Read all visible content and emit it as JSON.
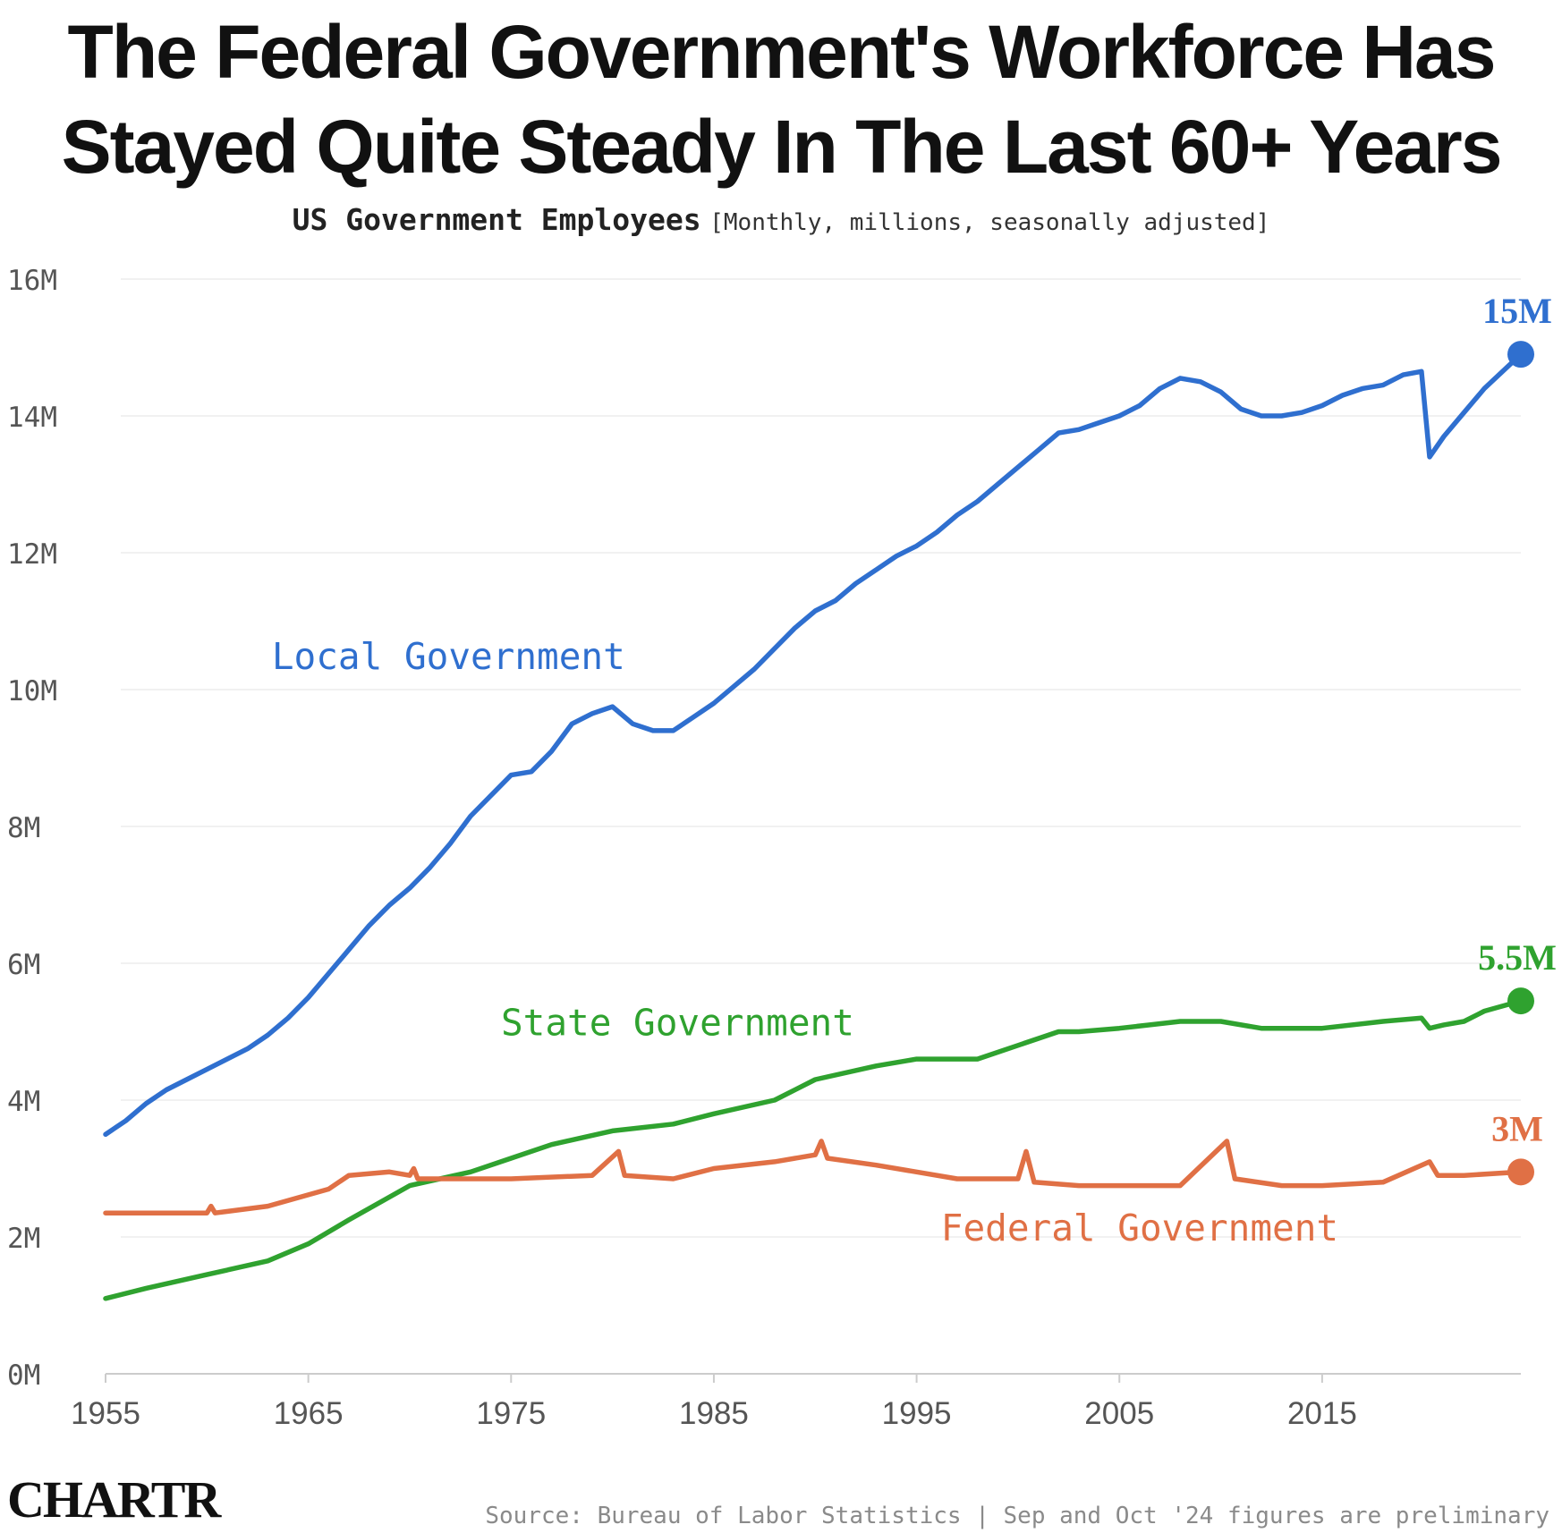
{
  "header": {
    "title_line1": "The Federal Government's Workforce Has",
    "title_line2": "Stayed Quite Steady In The Last 60+ Years",
    "subtitle_main": "US Government Employees",
    "subtitle_note": "[Monthly, millions, seasonally adjusted]"
  },
  "footer": {
    "logo": "CHARTR",
    "source": "Source: Bureau of Labor Statistics | Sep and Oct '24 figures are preliminary"
  },
  "colors": {
    "local": "#2f6fcf",
    "state": "#2fa22f",
    "federal": "#e07045",
    "grid": "#f1f1f1",
    "axis": "#cccccc",
    "tick_text": "#555555"
  },
  "chart_data": {
    "type": "line",
    "title": "The Federal Government's Workforce Has Stayed Quite Steady In The Last 60+ Years",
    "subtitle": "US Government Employees [Monthly, millions, seasonally adjusted]",
    "xlabel": "",
    "ylabel": "",
    "xlim": [
      1955,
      2024.8
    ],
    "ylim": [
      0,
      16
    ],
    "x_ticks": [
      1955,
      1965,
      1975,
      1985,
      1995,
      2005,
      2015
    ],
    "y_ticks": [
      {
        "value": 0,
        "label": "0M"
      },
      {
        "value": 2,
        "label": "2M"
      },
      {
        "value": 4,
        "label": "4M"
      },
      {
        "value": 6,
        "label": "6M"
      },
      {
        "value": 8,
        "label": "8M"
      },
      {
        "value": 10,
        "label": "10M"
      },
      {
        "value": 12,
        "label": "12M"
      },
      {
        "value": 14,
        "label": "14M"
      },
      {
        "value": 16,
        "label": "16M"
      }
    ],
    "grid": true,
    "legend": "none",
    "series": [
      {
        "key": "local",
        "name": "Local Government",
        "end_label": "15M",
        "points": [
          [
            1955,
            3.5
          ],
          [
            1956,
            3.7
          ],
          [
            1957,
            3.95
          ],
          [
            1958,
            4.15
          ],
          [
            1959,
            4.3
          ],
          [
            1960,
            4.45
          ],
          [
            1961,
            4.6
          ],
          [
            1962,
            4.75
          ],
          [
            1963,
            4.95
          ],
          [
            1964,
            5.2
          ],
          [
            1965,
            5.5
          ],
          [
            1966,
            5.85
          ],
          [
            1967,
            6.2
          ],
          [
            1968,
            6.55
          ],
          [
            1969,
            6.85
          ],
          [
            1970,
            7.1
          ],
          [
            1971,
            7.4
          ],
          [
            1972,
            7.75
          ],
          [
            1973,
            8.15
          ],
          [
            1974,
            8.45
          ],
          [
            1975,
            8.75
          ],
          [
            1976,
            8.8
          ],
          [
            1977,
            9.1
          ],
          [
            1978,
            9.5
          ],
          [
            1979,
            9.65
          ],
          [
            1980,
            9.75
          ],
          [
            1981,
            9.5
          ],
          [
            1982,
            9.4
          ],
          [
            1983,
            9.4
          ],
          [
            1984,
            9.6
          ],
          [
            1985,
            9.8
          ],
          [
            1986,
            10.05
          ],
          [
            1987,
            10.3
          ],
          [
            1988,
            10.6
          ],
          [
            1989,
            10.9
          ],
          [
            1990,
            11.15
          ],
          [
            1991,
            11.3
          ],
          [
            1992,
            11.55
          ],
          [
            1993,
            11.75
          ],
          [
            1994,
            11.95
          ],
          [
            1995,
            12.1
          ],
          [
            1996,
            12.3
          ],
          [
            1997,
            12.55
          ],
          [
            1998,
            12.75
          ],
          [
            1999,
            13.0
          ],
          [
            2000,
            13.25
          ],
          [
            2001,
            13.5
          ],
          [
            2002,
            13.75
          ],
          [
            2003,
            13.8
          ],
          [
            2004,
            13.9
          ],
          [
            2005,
            14.0
          ],
          [
            2006,
            14.15
          ],
          [
            2007,
            14.4
          ],
          [
            2008,
            14.55
          ],
          [
            2009,
            14.5
          ],
          [
            2010,
            14.35
          ],
          [
            2011,
            14.1
          ],
          [
            2012,
            14.0
          ],
          [
            2013,
            14.0
          ],
          [
            2014,
            14.05
          ],
          [
            2015,
            14.15
          ],
          [
            2016,
            14.3
          ],
          [
            2017,
            14.4
          ],
          [
            2018,
            14.45
          ],
          [
            2019,
            14.6
          ],
          [
            2019.9,
            14.65
          ],
          [
            2020.3,
            13.4
          ],
          [
            2021,
            13.7
          ],
          [
            2022,
            14.05
          ],
          [
            2023,
            14.4
          ],
          [
            2024.8,
            14.9
          ]
        ]
      },
      {
        "key": "state",
        "name": "State Government",
        "end_label": "5.5M",
        "points": [
          [
            1955,
            1.1
          ],
          [
            1957,
            1.25
          ],
          [
            1960,
            1.45
          ],
          [
            1963,
            1.65
          ],
          [
            1965,
            1.9
          ],
          [
            1967,
            2.25
          ],
          [
            1970,
            2.75
          ],
          [
            1973,
            2.95
          ],
          [
            1975,
            3.15
          ],
          [
            1977,
            3.35
          ],
          [
            1980,
            3.55
          ],
          [
            1983,
            3.65
          ],
          [
            1985,
            3.8
          ],
          [
            1988,
            4.0
          ],
          [
            1990,
            4.3
          ],
          [
            1993,
            4.5
          ],
          [
            1995,
            4.6
          ],
          [
            1998,
            4.6
          ],
          [
            2000,
            4.8
          ],
          [
            2002,
            5.0
          ],
          [
            2003,
            5.0
          ],
          [
            2005,
            5.05
          ],
          [
            2008,
            5.15
          ],
          [
            2010,
            5.15
          ],
          [
            2012,
            5.05
          ],
          [
            2015,
            5.05
          ],
          [
            2018,
            5.15
          ],
          [
            2019.9,
            5.2
          ],
          [
            2020.3,
            5.05
          ],
          [
            2021,
            5.1
          ],
          [
            2022,
            5.15
          ],
          [
            2023,
            5.3
          ],
          [
            2024.8,
            5.45
          ]
        ]
      },
      {
        "key": "federal",
        "name": "Federal Government",
        "end_label": "3M",
        "points": [
          [
            1955,
            2.35
          ],
          [
            1958,
            2.35
          ],
          [
            1960,
            2.35
          ],
          [
            1960.2,
            2.45
          ],
          [
            1960.4,
            2.35
          ],
          [
            1963,
            2.45
          ],
          [
            1966,
            2.7
          ],
          [
            1967,
            2.9
          ],
          [
            1969,
            2.95
          ],
          [
            1970,
            2.9
          ],
          [
            1970.2,
            3.0
          ],
          [
            1970.4,
            2.85
          ],
          [
            1972,
            2.85
          ],
          [
            1975,
            2.85
          ],
          [
            1979,
            2.9
          ],
          [
            1980.3,
            3.25
          ],
          [
            1980.6,
            2.9
          ],
          [
            1983,
            2.85
          ],
          [
            1985,
            3.0
          ],
          [
            1988,
            3.1
          ],
          [
            1990,
            3.2
          ],
          [
            1990.3,
            3.4
          ],
          [
            1990.6,
            3.15
          ],
          [
            1993,
            3.05
          ],
          [
            1997,
            2.85
          ],
          [
            2000,
            2.85
          ],
          [
            2000.4,
            3.25
          ],
          [
            2000.8,
            2.8
          ],
          [
            2003,
            2.75
          ],
          [
            2008,
            2.75
          ],
          [
            2010.3,
            3.4
          ],
          [
            2010.7,
            2.85
          ],
          [
            2013,
            2.75
          ],
          [
            2015,
            2.75
          ],
          [
            2018,
            2.8
          ],
          [
            2020.3,
            3.1
          ],
          [
            2020.7,
            2.9
          ],
          [
            2022,
            2.9
          ],
          [
            2024.8,
            2.95
          ]
        ]
      }
    ],
    "annotations": [
      {
        "text": "Local Government",
        "series": "local",
        "x": 1963.2,
        "y": 10.3
      },
      {
        "text": "State Government",
        "series": "state",
        "x": 1974.5,
        "y": 4.95
      },
      {
        "text": "Federal Government",
        "series": "federal",
        "x": 1996.2,
        "y": 1.95
      }
    ]
  }
}
